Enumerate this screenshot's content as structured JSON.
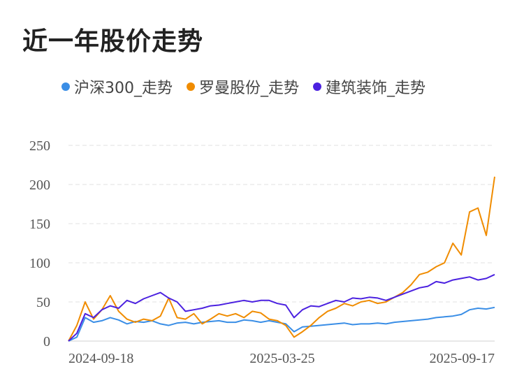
{
  "title": "近一年股价走势",
  "colors": {
    "hs300": "#3a8ee6",
    "roman": "#f08c00",
    "build": "#4b21e0",
    "grid": "#e0e0e0"
  },
  "legend": [
    {
      "name": "沪深300_走势",
      "color": "#3a8ee6"
    },
    {
      "name": "罗曼股份_走势",
      "color": "#f08c00"
    },
    {
      "name": "建筑装饰_走势",
      "color": "#4b21e0"
    }
  ],
  "chart_data": {
    "type": "line",
    "title": "近一年股价走势",
    "xlabel": "",
    "ylabel": "",
    "ylim": [
      0,
      250
    ],
    "yticks": [
      0,
      50,
      100,
      150,
      200,
      250
    ],
    "x_tick_labels": [
      "2024-09-18",
      "2025-03-25",
      "2025-09-17"
    ],
    "grid": true,
    "legend_position": "top",
    "x": [
      "2024-09-18",
      "2024-09-23",
      "2024-09-27",
      "2024-10-08",
      "2024-10-14",
      "2024-10-21",
      "2024-10-28",
      "2024-11-04",
      "2024-11-11",
      "2024-11-18",
      "2024-11-25",
      "2024-12-02",
      "2024-12-09",
      "2024-12-16",
      "2024-12-23",
      "2024-12-30",
      "2025-01-06",
      "2025-01-13",
      "2025-01-20",
      "2025-02-05",
      "2025-02-10",
      "2025-02-17",
      "2025-02-24",
      "2025-03-03",
      "2025-03-10",
      "2025-03-17",
      "2025-03-25",
      "2025-03-31",
      "2025-04-07",
      "2025-04-14",
      "2025-04-21",
      "2025-04-28",
      "2025-05-06",
      "2025-05-12",
      "2025-05-19",
      "2025-05-26",
      "2025-06-03",
      "2025-06-09",
      "2025-06-16",
      "2025-06-23",
      "2025-06-30",
      "2025-07-07",
      "2025-07-14",
      "2025-07-21",
      "2025-07-28",
      "2025-08-04",
      "2025-08-11",
      "2025-08-18",
      "2025-08-25",
      "2025-09-01",
      "2025-09-08",
      "2025-09-17"
    ],
    "series": [
      {
        "name": "沪深300_走势",
        "color": "#3a8ee6",
        "values": [
          0,
          5,
          30,
          24,
          26,
          30,
          27,
          22,
          25,
          24,
          26,
          22,
          20,
          23,
          24,
          22,
          24,
          25,
          26,
          24,
          24,
          27,
          26,
          24,
          26,
          24,
          22,
          12,
          18,
          19,
          20,
          21,
          22,
          23,
          21,
          22,
          22,
          23,
          22,
          24,
          25,
          26,
          27,
          28,
          30,
          31,
          32,
          34,
          40,
          42,
          41,
          43
        ]
      },
      {
        "name": "罗曼股份_走势",
        "color": "#f08c00",
        "values": [
          0,
          20,
          50,
          28,
          40,
          58,
          38,
          28,
          24,
          28,
          26,
          32,
          55,
          30,
          28,
          35,
          22,
          28,
          35,
          32,
          35,
          30,
          38,
          36,
          28,
          26,
          20,
          5,
          12,
          20,
          30,
          38,
          42,
          48,
          45,
          50,
          52,
          48,
          50,
          56,
          62,
          72,
          85,
          88,
          95,
          100,
          125,
          110,
          165,
          170,
          135,
          210
        ]
      },
      {
        "name": "建筑装饰_走势",
        "color": "#4b21e0",
        "values": [
          0,
          10,
          35,
          30,
          40,
          45,
          42,
          52,
          48,
          54,
          58,
          62,
          55,
          50,
          38,
          40,
          42,
          45,
          46,
          48,
          50,
          52,
          50,
          52,
          52,
          48,
          46,
          30,
          40,
          45,
          44,
          48,
          52,
          50,
          55,
          54,
          56,
          55,
          52,
          56,
          60,
          64,
          68,
          70,
          76,
          74,
          78,
          80,
          82,
          78,
          80,
          85
        ]
      }
    ]
  }
}
